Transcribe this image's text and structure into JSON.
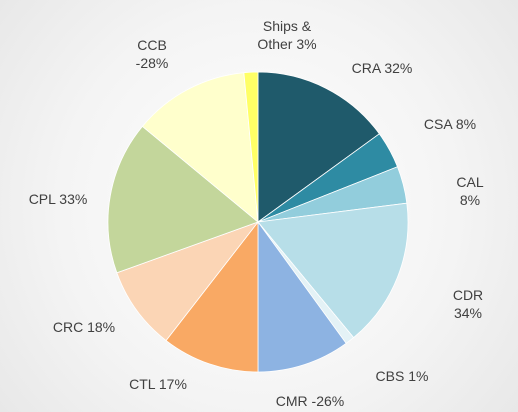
{
  "chart_data": {
    "type": "pie",
    "labels": [
      "CRA 32%",
      "CSA 8%",
      "CAL 8%",
      "CDR 34%",
      "CBS 1%",
      "CMR -26%",
      "CTL 17%",
      "CRC 18%",
      "CPL 33%",
      "CCB\n-28%",
      "Ships &\nOther 3%"
    ],
    "values": [
      15,
      4,
      4,
      16,
      1,
      10,
      10.5,
      9,
      16.5,
      12.5,
      1.5
    ],
    "colors": [
      "#1f5a6b",
      "#2e8ba3",
      "#92cddc",
      "#b7dee8",
      "#e4f2f6",
      "#8db3e2",
      "#f9a964",
      "#fbd5b5",
      "#c3d69b",
      "#ffffcc",
      "#ffff66"
    ]
  }
}
